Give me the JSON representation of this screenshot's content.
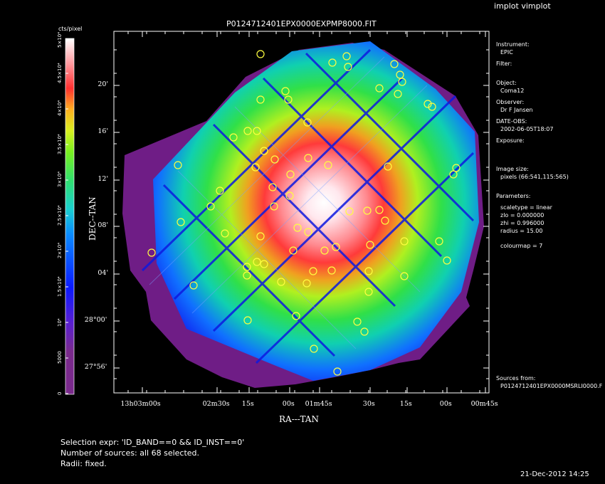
{
  "app_title": "implot vimplot",
  "chart_data": {
    "type": "heatmap",
    "title": "P0124712401EPX0000EXPMP8000.FIT",
    "xlabel": "RA---TAN",
    "ylabel": "DEC--TAN",
    "x_ticks": [
      "13h03m00s",
      "02m30s",
      "15s",
      "00s",
      "01m45s",
      "30s",
      "15s",
      "00s",
      "00m45s"
    ],
    "y_ticks": [
      "20'",
      "16'",
      "12'",
      "08'",
      "04'",
      "28°00'",
      "27°56'"
    ],
    "colorbar": {
      "unit": "cts/pixel",
      "ticks": [
        "0",
        "5000",
        "10⁴",
        "1.5×10⁴",
        "2×10⁴",
        "2.5×10⁴",
        "3×10⁴",
        "3.5×10⁴",
        "4×10⁴",
        "4.5×10⁴",
        "5×10⁴"
      ],
      "range": [
        0,
        50000
      ]
    },
    "sources_count": 68,
    "source_marker_color": "#ffff40"
  },
  "info_panel": {
    "instrument_label": "Instrument:",
    "instrument_value": "EPIC",
    "filter_label": "Filter:",
    "object_label": "Object:",
    "object_value": "Coma12",
    "observer_label": "Observer:",
    "observer_value": "Dr F Jansen",
    "date_label": "DATE-OBS:",
    "date_value": "2002-06-05T18:07",
    "exposure_label": "Exposure:",
    "image_size_label": "Image size:",
    "image_size_value": "pixels (66:541,115:565)",
    "parameters_label": "Parameters:",
    "param_scaletype": "scaletype = linear",
    "param_zlo": "zlo = 0.000000",
    "param_zhi": "zhi = 0.996000",
    "param_radius": "radius = 15.00",
    "param_colourmap": "colourmap = 7",
    "sources_label": "Sources from:",
    "sources_value": "P0124712401EPX0000MSRLI0000.F"
  },
  "selection": {
    "expr": "Selection expr: 'ID_BAND==0 && ID_INST==0'",
    "count": "Number of sources: all 68 selected.",
    "radii": "Radii: fixed."
  },
  "timestamp": "21-Dec-2012 14:25"
}
